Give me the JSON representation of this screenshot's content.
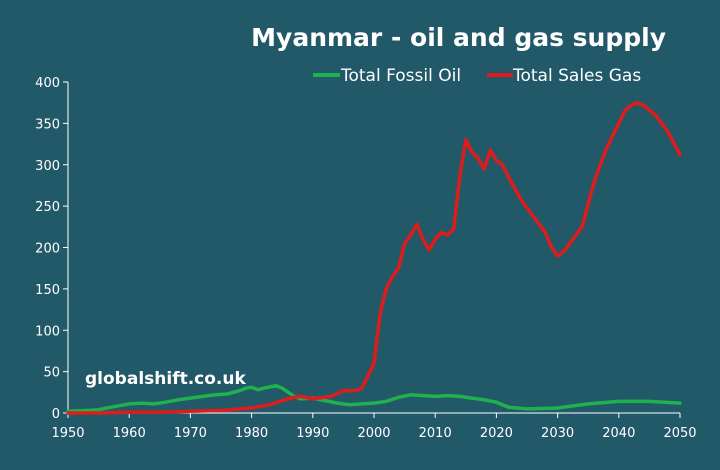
{
  "chart_data": {
    "type": "line",
    "title": "Myanmar - oil and gas supply",
    "xlabel": "",
    "ylabel": "",
    "xlim": [
      1950,
      2050
    ],
    "ylim": [
      0,
      400
    ],
    "x_ticks": [
      1950,
      1960,
      1970,
      1980,
      1990,
      2000,
      2010,
      2020,
      2030,
      2040,
      2050
    ],
    "y_ticks": [
      0,
      50,
      100,
      150,
      200,
      250,
      300,
      350,
      400
    ],
    "grid": false,
    "legend_position": "top-right",
    "annotation": "globalshift.co.uk",
    "series": [
      {
        "name": "Total Fossil Oil",
        "color": "#1fb14d",
        "x": [
          1950,
          1953,
          1955,
          1957,
          1960,
          1962,
          1964,
          1966,
          1968,
          1970,
          1972,
          1974,
          1976,
          1978,
          1979,
          1980,
          1981,
          1982,
          1984,
          1985,
          1986,
          1987,
          1988,
          1990,
          1992,
          1994,
          1996,
          1998,
          2000,
          2002,
          2004,
          2006,
          2008,
          2010,
          2012,
          2014,
          2016,
          2018,
          2020,
          2022,
          2025,
          2030,
          2035,
          2040,
          2045,
          2050
        ],
        "values": [
          2,
          3,
          4,
          7,
          11,
          12,
          11,
          13,
          16,
          18,
          20,
          22,
          23,
          27,
          30,
          31,
          28,
          30,
          33,
          30,
          25,
          20,
          17,
          18,
          15,
          12,
          10,
          11,
          12,
          14,
          19,
          22,
          21,
          20,
          21,
          20,
          18,
          16,
          13,
          7,
          5,
          6,
          11,
          14,
          14,
          12
        ]
      },
      {
        "name": "Total Sales Gas",
        "color": "#e01b1b",
        "x": [
          1950,
          1955,
          1960,
          1965,
          1970,
          1975,
          1980,
          1983,
          1985,
          1987,
          1988,
          1990,
          1993,
          1995,
          1997,
          1998,
          2000,
          2001,
          2002,
          2003,
          2004,
          2005,
          2006,
          2007,
          2008,
          2009,
          2010,
          2011,
          2012,
          2013,
          2014,
          2015,
          2016,
          2017,
          2018,
          2019,
          2020,
          2021,
          2022,
          2024,
          2026,
          2028,
          2029,
          2030,
          2031,
          2032,
          2034,
          2036,
          2038,
          2040,
          2041,
          2042,
          2043,
          2044,
          2046,
          2048,
          2050
        ],
        "values": [
          0,
          0,
          1,
          1,
          2,
          3,
          6,
          10,
          15,
          19,
          20,
          17,
          20,
          27,
          27,
          30,
          60,
          120,
          150,
          165,
          175,
          205,
          215,
          228,
          210,
          197,
          210,
          218,
          215,
          222,
          285,
          330,
          315,
          308,
          295,
          318,
          305,
          300,
          285,
          258,
          238,
          218,
          200,
          190,
          195,
          205,
          225,
          280,
          320,
          350,
          365,
          372,
          375,
          372,
          360,
          340,
          312
        ]
      }
    ]
  }
}
